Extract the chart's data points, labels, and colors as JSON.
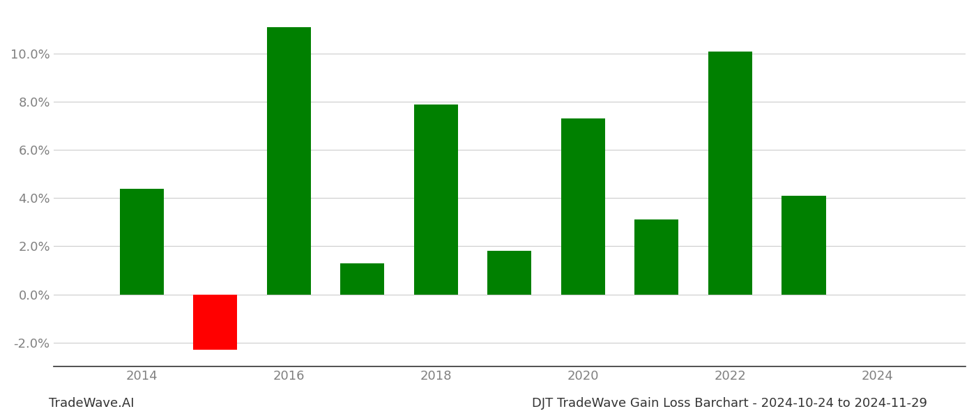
{
  "years": [
    2014,
    2015,
    2016,
    2017,
    2018,
    2019,
    2020,
    2021,
    2022,
    2023
  ],
  "values": [
    0.044,
    -0.023,
    0.111,
    0.013,
    0.079,
    0.018,
    0.073,
    0.031,
    0.101,
    0.041
  ],
  "color_positive": "#008000",
  "color_negative": "#ff0000",
  "title": "DJT TradeWave Gain Loss Barchart - 2024-10-24 to 2024-11-29",
  "watermark": "TradeWave.AI",
  "ylim_min": -0.03,
  "ylim_max": 0.118,
  "yticks": [
    -0.02,
    0.0,
    0.02,
    0.04,
    0.06,
    0.08,
    0.1
  ],
  "xlim_min": 2012.8,
  "xlim_max": 2025.2,
  "xtick_years": [
    2014,
    2016,
    2018,
    2020,
    2022,
    2024
  ],
  "figwidth": 14.0,
  "figheight": 6.0,
  "background_color": "#ffffff",
  "grid_color": "#cccccc",
  "title_fontsize": 13,
  "watermark_fontsize": 13,
  "axis_label_color": "#808080",
  "bar_width": 0.6
}
